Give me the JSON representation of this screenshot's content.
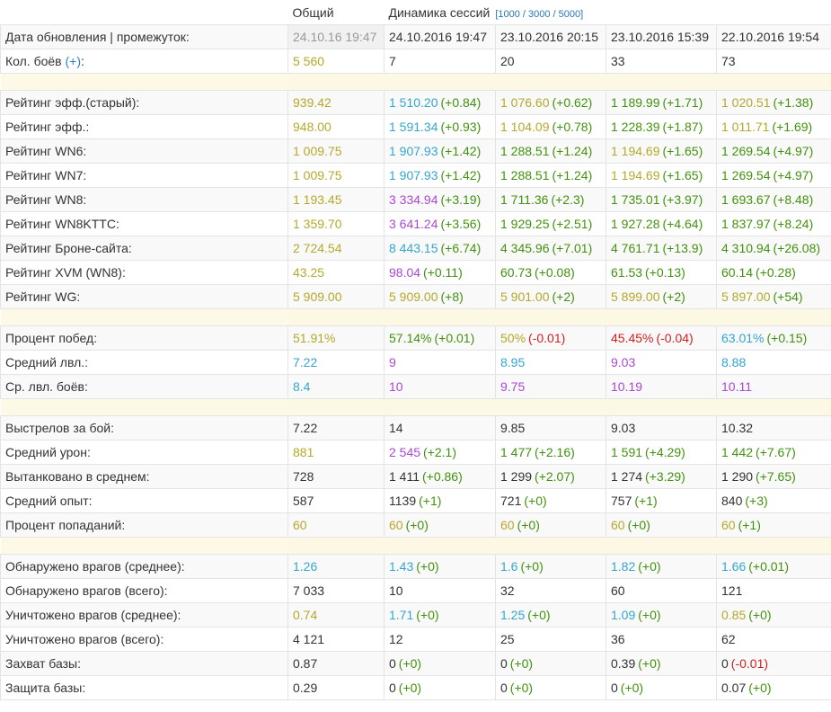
{
  "header": {
    "total": "Общий",
    "sessions": "Динамика сессий",
    "presets": [
      "[1000",
      "3000",
      "5000]"
    ],
    "preset_sep": " / "
  },
  "rows": [
    {
      "label": "Дата обновления | промежуток:",
      "cells": [
        {
          "v": "24.10.16 19:47",
          "c": "gray"
        },
        {
          "v": "24.10.2016 19:47",
          "c": "dark"
        },
        {
          "v": "23.10.2016 20:15",
          "c": "dark"
        },
        {
          "v": "23.10.2016 15:39",
          "c": "dark"
        },
        {
          "v": "22.10.2016 19:54",
          "c": "dark"
        }
      ]
    },
    {
      "label": "Кол. боёв ",
      "label_link": "(+)",
      "label_tail": ":",
      "cells": [
        {
          "v": "5 560",
          "c": "olive"
        },
        {
          "v": "7",
          "c": "dark"
        },
        {
          "v": "20",
          "c": "dark"
        },
        {
          "v": "33",
          "c": "dark"
        },
        {
          "v": "73",
          "c": "dark"
        }
      ]
    },
    {
      "sep": true
    },
    {
      "label": "Рейтинг эфф.(старый):",
      "cells": [
        {
          "v": "939.42",
          "c": "olive"
        },
        {
          "v": "1 510.20",
          "c": "blue",
          "d": "(+0.84)",
          "dc": "green"
        },
        {
          "v": "1 076.60",
          "c": "olive",
          "d": "(+0.62)",
          "dc": "green"
        },
        {
          "v": "1 189.99",
          "c": "green",
          "d": "(+1.71)",
          "dc": "green"
        },
        {
          "v": "1 020.51",
          "c": "olive",
          "d": "(+1.38)",
          "dc": "green"
        }
      ]
    },
    {
      "label": "Рейтинг эфф.:",
      "cells": [
        {
          "v": "948.00",
          "c": "olive"
        },
        {
          "v": "1 591.34",
          "c": "blue",
          "d": "(+0.93)",
          "dc": "green"
        },
        {
          "v": "1 104.09",
          "c": "olive",
          "d": "(+0.78)",
          "dc": "green"
        },
        {
          "v": "1 228.39",
          "c": "green",
          "d": "(+1.87)",
          "dc": "green"
        },
        {
          "v": "1 011.71",
          "c": "olive",
          "d": "(+1.69)",
          "dc": "green"
        }
      ]
    },
    {
      "label": "Рейтинг WN6:",
      "cells": [
        {
          "v": "1 009.75",
          "c": "olive"
        },
        {
          "v": "1 907.93",
          "c": "blue",
          "d": "(+1.42)",
          "dc": "green"
        },
        {
          "v": "1 288.51",
          "c": "green",
          "d": "(+1.24)",
          "dc": "green"
        },
        {
          "v": "1 194.69",
          "c": "olive",
          "d": "(+1.65)",
          "dc": "green"
        },
        {
          "v": "1 269.54",
          "c": "green",
          "d": "(+4.97)",
          "dc": "green"
        }
      ]
    },
    {
      "label": "Рейтинг WN7:",
      "cells": [
        {
          "v": "1 009.75",
          "c": "olive"
        },
        {
          "v": "1 907.93",
          "c": "blue",
          "d": "(+1.42)",
          "dc": "green"
        },
        {
          "v": "1 288.51",
          "c": "green",
          "d": "(+1.24)",
          "dc": "green"
        },
        {
          "v": "1 194.69",
          "c": "olive",
          "d": "(+1.65)",
          "dc": "green"
        },
        {
          "v": "1 269.54",
          "c": "green",
          "d": "(+4.97)",
          "dc": "green"
        }
      ]
    },
    {
      "label": "Рейтинг WN8:",
      "cells": [
        {
          "v": "1 193.45",
          "c": "olive"
        },
        {
          "v": "3 334.94",
          "c": "purple",
          "d": "(+3.19)",
          "dc": "green"
        },
        {
          "v": "1 711.36",
          "c": "green",
          "d": "(+2.3)",
          "dc": "green"
        },
        {
          "v": "1 735.01",
          "c": "green",
          "d": "(+3.97)",
          "dc": "green"
        },
        {
          "v": "1 693.67",
          "c": "green",
          "d": "(+8.48)",
          "dc": "green"
        }
      ]
    },
    {
      "label": "Рейтинг WN8KTTC:",
      "cells": [
        {
          "v": "1 359.70",
          "c": "olive"
        },
        {
          "v": "3 641.24",
          "c": "purple",
          "d": "(+3.56)",
          "dc": "green"
        },
        {
          "v": "1 929.25",
          "c": "green",
          "d": "(+2.51)",
          "dc": "green"
        },
        {
          "v": "1 927.28",
          "c": "green",
          "d": "(+4.64)",
          "dc": "green"
        },
        {
          "v": "1 837.97",
          "c": "green",
          "d": "(+8.24)",
          "dc": "green"
        }
      ]
    },
    {
      "label": "Рейтинг Броне-сайта:",
      "cells": [
        {
          "v": "2 724.54",
          "c": "olive"
        },
        {
          "v": "8 443.15",
          "c": "blue",
          "d": "(+6.74)",
          "dc": "green"
        },
        {
          "v": "4 345.96",
          "c": "green",
          "d": "(+7.01)",
          "dc": "green"
        },
        {
          "v": "4 761.71",
          "c": "green",
          "d": "(+13.9)",
          "dc": "green"
        },
        {
          "v": "4 310.94",
          "c": "green",
          "d": "(+26.08)",
          "dc": "green"
        }
      ]
    },
    {
      "label": "Рейтинг XVM (WN8):",
      "cells": [
        {
          "v": "43.25",
          "c": "olive"
        },
        {
          "v": "98.04",
          "c": "purple",
          "d": "(+0.11)",
          "dc": "green"
        },
        {
          "v": "60.73",
          "c": "green",
          "d": "(+0.08)",
          "dc": "green"
        },
        {
          "v": "61.53",
          "c": "green",
          "d": "(+0.13)",
          "dc": "green"
        },
        {
          "v": "60.14",
          "c": "green",
          "d": "(+0.28)",
          "dc": "green"
        }
      ]
    },
    {
      "label": "Рейтинг WG:",
      "cells": [
        {
          "v": "5 909.00",
          "c": "olive"
        },
        {
          "v": "5 909.00",
          "c": "olive",
          "d": "(+8)",
          "dc": "green"
        },
        {
          "v": "5 901.00",
          "c": "olive",
          "d": "(+2)",
          "dc": "green"
        },
        {
          "v": "5 899.00",
          "c": "olive",
          "d": "(+2)",
          "dc": "green"
        },
        {
          "v": "5 897.00",
          "c": "olive",
          "d": "(+54)",
          "dc": "green"
        }
      ]
    },
    {
      "sep": true
    },
    {
      "label": "Процент побед:",
      "cells": [
        {
          "v": "51.91%",
          "c": "olive"
        },
        {
          "v": "57.14%",
          "c": "green",
          "d": "(+0.01)",
          "dc": "green"
        },
        {
          "v": "50%",
          "c": "olive",
          "d": "(-0.01)",
          "dc": "red"
        },
        {
          "v": "45.45%",
          "c": "red",
          "d": "(-0.04)",
          "dc": "red"
        },
        {
          "v": "63.01%",
          "c": "blue",
          "d": "(+0.15)",
          "dc": "green"
        }
      ]
    },
    {
      "label": "Средний лвл.:",
      "cells": [
        {
          "v": "7.22",
          "c": "blue"
        },
        {
          "v": "9",
          "c": "purple"
        },
        {
          "v": "8.95",
          "c": "blue"
        },
        {
          "v": "9.03",
          "c": "purple"
        },
        {
          "v": "8.88",
          "c": "blue"
        }
      ]
    },
    {
      "label": "Ср. лвл. боёв:",
      "cells": [
        {
          "v": "8.4",
          "c": "blue"
        },
        {
          "v": "10",
          "c": "purple"
        },
        {
          "v": "9.75",
          "c": "purple"
        },
        {
          "v": "10.19",
          "c": "purple"
        },
        {
          "v": "10.11",
          "c": "purple"
        }
      ]
    },
    {
      "sep": true
    },
    {
      "label": "Выстрелов за бой:",
      "cells": [
        {
          "v": "7.22",
          "c": "dark"
        },
        {
          "v": "14",
          "c": "dark"
        },
        {
          "v": "9.85",
          "c": "dark"
        },
        {
          "v": "9.03",
          "c": "dark"
        },
        {
          "v": "10.32",
          "c": "dark"
        }
      ]
    },
    {
      "label": "Средний урон:",
      "cells": [
        {
          "v": "881",
          "c": "olive"
        },
        {
          "v": "2 545",
          "c": "purple",
          "d": "(+2.1)",
          "dc": "green"
        },
        {
          "v": "1 477",
          "c": "green",
          "d": "(+2.16)",
          "dc": "green"
        },
        {
          "v": "1 591",
          "c": "green",
          "d": "(+4.29)",
          "dc": "green"
        },
        {
          "v": "1 442",
          "c": "green",
          "d": "(+7.67)",
          "dc": "green"
        }
      ]
    },
    {
      "label": "Вытанковано в среднем:",
      "cells": [
        {
          "v": "728",
          "c": "dark"
        },
        {
          "v": "1 411",
          "c": "dark",
          "d": "(+0.86)",
          "dc": "green"
        },
        {
          "v": "1 299",
          "c": "dark",
          "d": "(+2.07)",
          "dc": "green"
        },
        {
          "v": "1 274",
          "c": "dark",
          "d": "(+3.29)",
          "dc": "green"
        },
        {
          "v": "1 290",
          "c": "dark",
          "d": "(+7.65)",
          "dc": "green"
        }
      ]
    },
    {
      "label": "Средний опыт:",
      "cells": [
        {
          "v": "587",
          "c": "dark"
        },
        {
          "v": "1139",
          "c": "dark",
          "d": "(+1)",
          "dc": "green"
        },
        {
          "v": "721",
          "c": "dark",
          "d": "(+0)",
          "dc": "green"
        },
        {
          "v": "757",
          "c": "dark",
          "d": "(+1)",
          "dc": "green"
        },
        {
          "v": "840",
          "c": "dark",
          "d": "(+3)",
          "dc": "green"
        }
      ]
    },
    {
      "label": "Процент попаданий:",
      "cells": [
        {
          "v": "60",
          "c": "olive"
        },
        {
          "v": "60",
          "c": "olive",
          "d": "(+0)",
          "dc": "green"
        },
        {
          "v": "60",
          "c": "olive",
          "d": "(+0)",
          "dc": "green"
        },
        {
          "v": "60",
          "c": "olive",
          "d": "(+0)",
          "dc": "green"
        },
        {
          "v": "60",
          "c": "olive",
          "d": "(+1)",
          "dc": "green"
        }
      ]
    },
    {
      "sep": true
    },
    {
      "label": "Обнаружено врагов (среднее):",
      "cells": [
        {
          "v": "1.26",
          "c": "blue"
        },
        {
          "v": "1.43",
          "c": "blue",
          "d": "(+0)",
          "dc": "green"
        },
        {
          "v": "1.6",
          "c": "blue",
          "d": "(+0)",
          "dc": "green"
        },
        {
          "v": "1.82",
          "c": "blue",
          "d": "(+0)",
          "dc": "green"
        },
        {
          "v": "1.66",
          "c": "blue",
          "d": "(+0.01)",
          "dc": "green"
        }
      ]
    },
    {
      "label": "Обнаружено врагов (всего):",
      "cells": [
        {
          "v": "7 033",
          "c": "dark"
        },
        {
          "v": "10",
          "c": "dark"
        },
        {
          "v": "32",
          "c": "dark"
        },
        {
          "v": "60",
          "c": "dark"
        },
        {
          "v": "121",
          "c": "dark"
        }
      ]
    },
    {
      "label": "Уничтожено врагов (среднее):",
      "cells": [
        {
          "v": "0.74",
          "c": "olive"
        },
        {
          "v": "1.71",
          "c": "blue",
          "d": "(+0)",
          "dc": "green"
        },
        {
          "v": "1.25",
          "c": "blue",
          "d": "(+0)",
          "dc": "green"
        },
        {
          "v": "1.09",
          "c": "blue",
          "d": "(+0)",
          "dc": "green"
        },
        {
          "v": "0.85",
          "c": "olive",
          "d": "(+0)",
          "dc": "green"
        }
      ]
    },
    {
      "label": "Уничтожено врагов (всего):",
      "cells": [
        {
          "v": "4 121",
          "c": "dark"
        },
        {
          "v": "12",
          "c": "dark"
        },
        {
          "v": "25",
          "c": "dark"
        },
        {
          "v": "36",
          "c": "dark"
        },
        {
          "v": "62",
          "c": "dark"
        }
      ]
    },
    {
      "label": "Захват базы:",
      "cells": [
        {
          "v": "0.87",
          "c": "dark"
        },
        {
          "v": "0",
          "c": "dark",
          "d": "(+0)",
          "dc": "green"
        },
        {
          "v": "0",
          "c": "dark",
          "d": "(+0)",
          "dc": "green"
        },
        {
          "v": "0.39",
          "c": "dark",
          "d": "(+0)",
          "dc": "green"
        },
        {
          "v": "0",
          "c": "dark",
          "d": "(-0.01)",
          "dc": "red"
        }
      ]
    },
    {
      "label": "Защита базы:",
      "cells": [
        {
          "v": "0.29",
          "c": "dark"
        },
        {
          "v": "0",
          "c": "dark",
          "d": "(+0)",
          "dc": "green"
        },
        {
          "v": "0",
          "c": "dark",
          "d": "(+0)",
          "dc": "green"
        },
        {
          "v": "0",
          "c": "dark",
          "d": "(+0)",
          "dc": "green"
        },
        {
          "v": "0.07",
          "c": "dark",
          "d": "(+0)",
          "dc": "green"
        }
      ]
    }
  ]
}
